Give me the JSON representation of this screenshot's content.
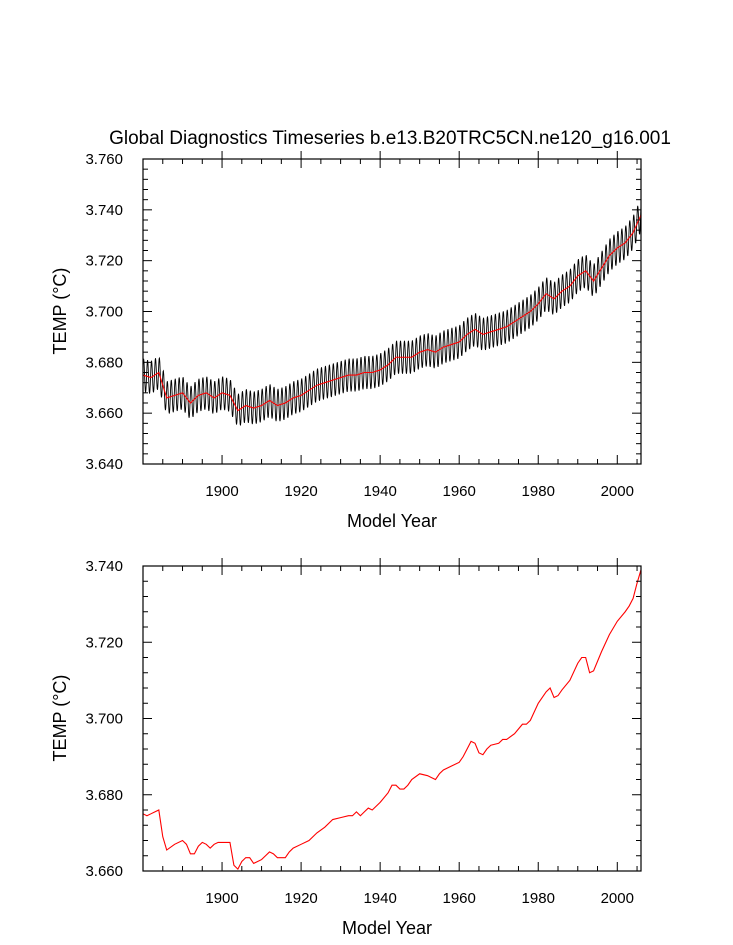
{
  "title": "Global Diagnostics Timeseries b.e13.B20TRC5CN.ne120_g16.001",
  "chart_data": [
    {
      "type": "line",
      "title": "Global Diagnostics Timeseries b.e13.B20TRC5CN.ne120_g16.001",
      "xlabel": "Model Year",
      "ylabel": "TEMP (°C)",
      "xlim": [
        1880,
        2006
      ],
      "ylim": [
        3.64,
        3.76
      ],
      "x_ticks": [
        "1900",
        "1920",
        "1940",
        "1960",
        "1980",
        "2000"
      ],
      "y_ticks": [
        "3.640",
        "3.660",
        "3.680",
        "3.700",
        "3.720",
        "3.740",
        "3.760"
      ],
      "series": [
        {
          "color": "#000000",
          "note_style": "monthly",
          "seasonal_amplitude": 0.0065,
          "x": [
            1880,
            1882,
            1884,
            1886,
            1888,
            1890,
            1892,
            1894,
            1896,
            1898,
            1900,
            1902,
            1904,
            1906,
            1908,
            1910,
            1912,
            1914,
            1916,
            1918,
            1920,
            1922,
            1924,
            1926,
            1928,
            1930,
            1932,
            1934,
            1936,
            1938,
            1940,
            1942,
            1944,
            1946,
            1948,
            1950,
            1952,
            1954,
            1956,
            1958,
            1960,
            1962,
            1964,
            1966,
            1968,
            1970,
            1972,
            1974,
            1976,
            1978,
            1980,
            1982,
            1984,
            1986,
            1988,
            1990,
            1992,
            1994,
            1996,
            1998,
            2000,
            2002,
            2004,
            2006
          ],
          "values": [
            3.675,
            3.674,
            3.676,
            3.666,
            3.667,
            3.668,
            3.664,
            3.667,
            3.668,
            3.666,
            3.668,
            3.667,
            3.661,
            3.663,
            3.662,
            3.663,
            3.665,
            3.663,
            3.664,
            3.666,
            3.667,
            3.669,
            3.671,
            3.672,
            3.673,
            3.674,
            3.675,
            3.675,
            3.676,
            3.676,
            3.677,
            3.679,
            3.682,
            3.682,
            3.682,
            3.684,
            3.685,
            3.684,
            3.686,
            3.687,
            3.688,
            3.691,
            3.693,
            3.691,
            3.692,
            3.693,
            3.694,
            3.696,
            3.698,
            3.7,
            3.703,
            3.707,
            3.705,
            3.708,
            3.71,
            3.714,
            3.716,
            3.712,
            3.717,
            3.722,
            3.725,
            3.727,
            3.731,
            3.738
          ]
        },
        {
          "color": "#ff0000",
          "x": [
            1880,
            1882,
            1884,
            1886,
            1888,
            1890,
            1892,
            1894,
            1896,
            1898,
            1900,
            1902,
            1904,
            1906,
            1908,
            1910,
            1912,
            1914,
            1916,
            1918,
            1920,
            1922,
            1924,
            1926,
            1928,
            1930,
            1932,
            1934,
            1936,
            1938,
            1940,
            1942,
            1944,
            1946,
            1948,
            1950,
            1952,
            1954,
            1956,
            1958,
            1960,
            1962,
            1964,
            1966,
            1968,
            1970,
            1972,
            1974,
            1976,
            1978,
            1980,
            1982,
            1984,
            1986,
            1988,
            1990,
            1992,
            1994,
            1996,
            1998,
            2000,
            2002,
            2004,
            2006
          ],
          "values": [
            3.675,
            3.674,
            3.676,
            3.666,
            3.667,
            3.668,
            3.664,
            3.667,
            3.668,
            3.666,
            3.668,
            3.667,
            3.661,
            3.663,
            3.662,
            3.663,
            3.665,
            3.663,
            3.664,
            3.666,
            3.667,
            3.669,
            3.671,
            3.672,
            3.673,
            3.674,
            3.675,
            3.675,
            3.676,
            3.676,
            3.677,
            3.679,
            3.682,
            3.682,
            3.682,
            3.684,
            3.685,
            3.684,
            3.686,
            3.687,
            3.688,
            3.691,
            3.693,
            3.691,
            3.692,
            3.693,
            3.694,
            3.696,
            3.698,
            3.7,
            3.703,
            3.707,
            3.705,
            3.708,
            3.71,
            3.714,
            3.716,
            3.712,
            3.717,
            3.722,
            3.725,
            3.727,
            3.731,
            3.738
          ]
        }
      ]
    },
    {
      "type": "line",
      "title": "",
      "xlabel": "Model Year",
      "ylabel": "TEMP (°C)",
      "xlim": [
        1880,
        2006
      ],
      "ylim": [
        3.66,
        3.74
      ],
      "x_ticks": [
        "1900",
        "1920",
        "1940",
        "1960",
        "1980",
        "2000"
      ],
      "y_ticks": [
        "3.660",
        "3.680",
        "3.700",
        "3.720",
        "3.740"
      ],
      "series": [
        {
          "color": "#ff0000",
          "x": [
            1880,
            1881,
            1882,
            1883,
            1884,
            1885,
            1886,
            1888,
            1890,
            1891,
            1892,
            1893,
            1894,
            1895,
            1896,
            1897,
            1898,
            1899,
            1900,
            1901,
            1902,
            1903,
            1904,
            1905,
            1906,
            1907,
            1908,
            1909,
            1910,
            1911,
            1912,
            1913,
            1914,
            1915,
            1916,
            1917,
            1918,
            1920,
            1922,
            1924,
            1926,
            1928,
            1930,
            1932,
            1933,
            1934,
            1935,
            1936,
            1937,
            1938,
            1940,
            1942,
            1943,
            1944,
            1945,
            1946,
            1947,
            1948,
            1950,
            1952,
            1953,
            1954,
            1955,
            1956,
            1958,
            1960,
            1961,
            1962,
            1963,
            1964,
            1965,
            1966,
            1967,
            1968,
            1970,
            1971,
            1972,
            1974,
            1976,
            1977,
            1978,
            1980,
            1981,
            1982,
            1983,
            1984,
            1985,
            1986,
            1988,
            1990,
            1991,
            1992,
            1993,
            1994,
            1996,
            1998,
            2000,
            2002,
            2003,
            2004,
            2005,
            2006
          ],
          "values": [
            3.675,
            3.6745,
            3.675,
            3.6755,
            3.676,
            3.669,
            3.6655,
            3.667,
            3.668,
            3.667,
            3.6645,
            3.6645,
            3.6665,
            3.6675,
            3.667,
            3.666,
            3.667,
            3.6675,
            3.6675,
            3.6675,
            3.6675,
            3.6615,
            3.6605,
            3.6625,
            3.6635,
            3.6635,
            3.662,
            3.6625,
            3.663,
            3.664,
            3.665,
            3.6645,
            3.6635,
            3.6635,
            3.6635,
            3.665,
            3.666,
            3.667,
            3.668,
            3.67,
            3.6715,
            3.6735,
            3.674,
            3.6745,
            3.6745,
            3.6755,
            3.6745,
            3.6755,
            3.6765,
            3.676,
            3.678,
            3.6805,
            3.6825,
            3.6825,
            3.6815,
            3.6815,
            3.6825,
            3.684,
            3.6855,
            3.685,
            3.6845,
            3.684,
            3.6855,
            3.6865,
            3.6875,
            3.6885,
            3.69,
            3.692,
            3.694,
            3.6935,
            3.691,
            3.6905,
            3.692,
            3.693,
            3.6935,
            3.6945,
            3.6945,
            3.696,
            3.6985,
            3.6985,
            3.6995,
            3.704,
            3.7055,
            3.707,
            3.708,
            3.7055,
            3.706,
            3.7075,
            3.71,
            3.7145,
            3.716,
            3.716,
            3.712,
            3.7125,
            3.7175,
            3.722,
            3.7255,
            3.728,
            3.7295,
            3.7315,
            3.7355,
            3.739
          ]
        }
      ]
    }
  ]
}
